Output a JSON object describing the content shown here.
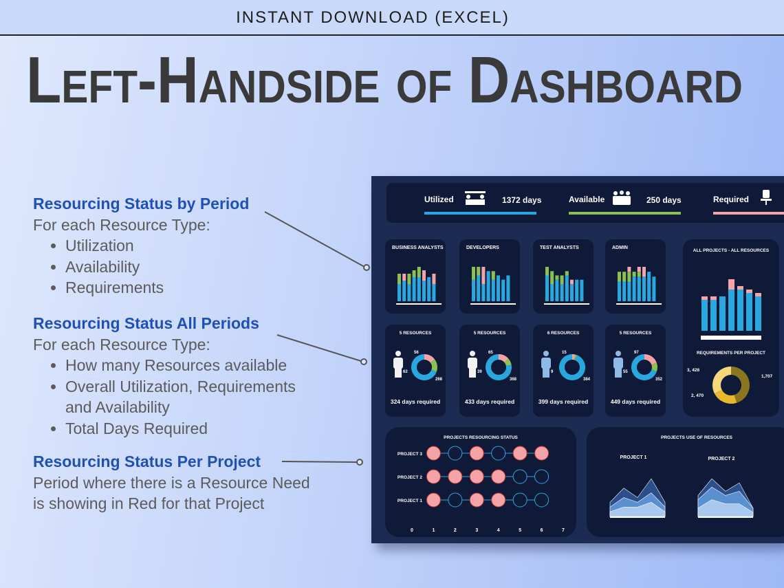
{
  "header": {
    "banner": "INSTANT DOWNLOAD (EXCEL)",
    "title": "Left-Handside of Dashboard"
  },
  "notes": [
    {
      "heading": "Resourcing Status by Period",
      "intro": "For each Resource Type:",
      "bullets": [
        "Utilization",
        "Availability",
        "Requirements"
      ]
    },
    {
      "heading": "Resourcing Status All Periods",
      "intro": "For each Resource Type:",
      "bullets": [
        "How many Resources available",
        "Overall Utilization, Requirements and Availability",
        "Total Days Required"
      ]
    },
    {
      "heading": "Resourcing Status Per Project",
      "lines": [
        "Period where there is a Resource Need",
        "is showing in Red for that Project"
      ]
    }
  ],
  "dashboard": {
    "colors": {
      "utilized": "#29a8e0",
      "available": "#8cc152",
      "required": "#f4a3a8",
      "donut": [
        "#f4a3a8",
        "#8cc152",
        "#29a8e0"
      ],
      "requirements": [
        "#8a7620",
        "#e8b82a",
        "#f3d77a"
      ],
      "areas": [
        "#2a4f8a",
        "#5a8fd0",
        "#a8c8ef"
      ]
    },
    "kpis": [
      {
        "label": "Utilized",
        "value": "1372 days"
      },
      {
        "label": "Available",
        "value": "250 days"
      },
      {
        "label": "Required"
      }
    ],
    "period_charts": [
      {
        "title": "BUSINESS ANALYSTS",
        "utilized": [
          5,
          6,
          5,
          7,
          7,
          6,
          7,
          5
        ],
        "available": [
          3,
          0,
          3,
          2,
          3,
          0,
          0,
          0
        ],
        "required": [
          0,
          2,
          0,
          0,
          0,
          3,
          0,
          3
        ]
      },
      {
        "title": "DEVELOPERS",
        "utilized": [
          5,
          6,
          4,
          7,
          5,
          6,
          5,
          6
        ],
        "available": [
          3,
          2,
          0,
          0,
          2,
          0,
          0,
          0
        ],
        "required": [
          0,
          0,
          4,
          0,
          0,
          0,
          0,
          0
        ]
      },
      {
        "title": "TEST ANALYSTS",
        "utilized": [
          6,
          4,
          5,
          4,
          6,
          4,
          5,
          5
        ],
        "available": [
          2,
          3,
          1,
          2,
          1,
          0,
          0,
          0
        ],
        "required": [
          0,
          0,
          0,
          0,
          0,
          1,
          0,
          0
        ]
      },
      {
        "title": "ADMIN",
        "utilized": [
          4,
          4,
          4,
          5,
          5,
          5,
          6,
          5
        ],
        "available": [
          2,
          2,
          2,
          1,
          1,
          0,
          0,
          0
        ],
        "required": [
          0,
          0,
          1,
          0,
          1,
          2,
          0,
          0
        ]
      }
    ],
    "all_projects": {
      "title": "ALL PROJECTS - ALL RESOURCES",
      "utilized": [
        9,
        9,
        10,
        12,
        12,
        11,
        10
      ],
      "required": [
        1,
        1,
        0,
        3,
        1,
        1,
        1
      ]
    },
    "resource_cards": [
      {
        "title": "5 RESOURCES",
        "values": [
          56,
          62,
          268
        ],
        "footer": "324 days required"
      },
      {
        "title": "5 RESOURCES",
        "values": [
          65,
          39,
          368
        ],
        "footer": "433 days required"
      },
      {
        "title": "6 RESOURCES",
        "values": [
          15,
          9,
          384
        ],
        "footer": "399 days required"
      },
      {
        "title": "5 RESOURCES",
        "values": [
          97,
          55,
          352
        ],
        "footer": "449 days required"
      }
    ],
    "requirements": {
      "title": "REQUIREMENTS PER PROJECT",
      "values": [
        3428,
        1707,
        2470
      ],
      "value_labels": [
        "3, 428",
        "1,707",
        "2, 470"
      ]
    },
    "project_status": {
      "title": "PROJECTS RESOURCING STATUS",
      "projects": [
        "PROJECT 3",
        "PROJECT 2",
        "PROJECT 1"
      ],
      "periods": [
        1,
        2,
        3,
        4,
        5,
        6
      ],
      "needs": [
        [
          1,
          0,
          1,
          0,
          1,
          1
        ],
        [
          1,
          1,
          1,
          1,
          0,
          0
        ],
        [
          1,
          0,
          1,
          1,
          0,
          0
        ]
      ],
      "xlim": [
        0,
        7
      ],
      "xticks": [
        0,
        1,
        2,
        3,
        4,
        5,
        6,
        7
      ]
    },
    "project_use": {
      "title": "PROJECTS USE OF RESOURCES",
      "projects": [
        {
          "name": "PROJECT 1",
          "layers": [
            [
              3,
              6,
              4,
              8,
              3
            ],
            [
              2,
              4,
              3,
              5,
              2
            ],
            [
              1,
              2,
              2,
              3,
              1
            ]
          ]
        },
        {
          "name": "PROJECT 2",
          "layers": [
            [
              5,
              9,
              6,
              8,
              2
            ],
            [
              4,
              7,
              5,
              6,
              2
            ],
            [
              2,
              4,
              3,
              3,
              1
            ]
          ]
        }
      ]
    }
  }
}
